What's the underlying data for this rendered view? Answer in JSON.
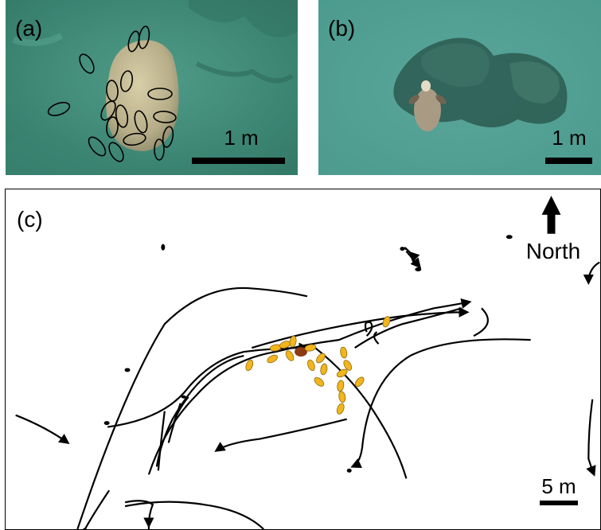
{
  "panels": {
    "a": {
      "label": "(a)",
      "scale": "1 m"
    },
    "b": {
      "label": "(b)",
      "scale": "1 m"
    },
    "c": {
      "label": "(c)",
      "scale": "5 m",
      "north": "North"
    }
  },
  "colors": {
    "water": "#3f8f7c",
    "water_light": "#5aa897",
    "sponge": "#d1c7a2",
    "ellipse_fill": "#f2b51d",
    "track": "#000000"
  }
}
